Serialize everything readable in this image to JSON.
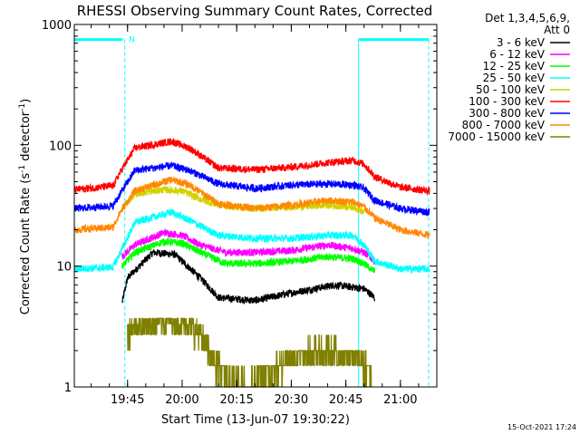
{
  "chart_data": {
    "type": "line",
    "title": "RHESSI Observing Summary Count Rates, Corrected",
    "ylabel_main": "Corrected Count Rate (s",
    "ylabel_sup1": "-1",
    "ylabel_mid": " detector",
    "ylabel_sup2": "-1",
    "ylabel_end": ")",
    "xlabel": "Start Time (13-Jun-07 19:30:22)",
    "footer_date": "15-Oct-2021 17:24",
    "y_scale": "log",
    "ylim": [
      1,
      1000
    ],
    "xlim": [
      "19:30:22",
      "21:10:00"
    ],
    "y_ticks": [
      {
        "value": 1,
        "label": "1"
      },
      {
        "value": 10,
        "label": "10"
      },
      {
        "value": 100,
        "label": "100"
      },
      {
        "value": 1000,
        "label": "1000"
      }
    ],
    "x_ticks": [
      {
        "value": "19:45",
        "label": "19:45"
      },
      {
        "value": "20:00",
        "label": "20:00"
      },
      {
        "value": "20:15",
        "label": "20:15"
      },
      {
        "value": "20:30",
        "label": "20:30"
      },
      {
        "value": "20:45",
        "label": "20:45"
      },
      {
        "value": "21:00",
        "label": "21:00"
      }
    ],
    "legend_header": [
      "Det 1,3,4,5,6,9,",
      "Att 0"
    ],
    "legend_position": "right",
    "series": [
      {
        "name": "3 - 6 keV",
        "color": "#000000",
        "points": [
          [
            "19:43:30",
            5
          ],
          [
            "19:45:00",
            8
          ],
          [
            "19:52:00",
            13
          ],
          [
            "19:58:00",
            12.5
          ],
          [
            "20:05:00",
            8
          ],
          [
            "20:10:00",
            5.5
          ],
          [
            "20:20:00",
            5.2
          ],
          [
            "20:30:00",
            6
          ],
          [
            "20:42:00",
            7
          ],
          [
            "20:50:00",
            6.5
          ],
          [
            "20:53:00",
            5.5
          ]
        ]
      },
      {
        "name": "6 - 12 keV",
        "color": "#ff00ff",
        "points": [
          [
            "19:43:30",
            12
          ],
          [
            "19:47:00",
            15
          ],
          [
            "19:55:00",
            19
          ],
          [
            "20:00:00",
            18
          ],
          [
            "20:05:00",
            15
          ],
          [
            "20:12:00",
            13
          ],
          [
            "20:20:00",
            13
          ],
          [
            "20:30:00",
            13.5
          ],
          [
            "20:40:00",
            15
          ],
          [
            "20:47:00",
            14
          ],
          [
            "20:50:00",
            13
          ],
          [
            "20:53:00",
            11
          ]
        ]
      },
      {
        "name": "12 - 25 keV",
        "color": "#00ff00",
        "points": [
          [
            "19:43:30",
            10
          ],
          [
            "19:47:00",
            13
          ],
          [
            "19:55:00",
            16
          ],
          [
            "20:00:00",
            15.5
          ],
          [
            "20:05:00",
            13
          ],
          [
            "20:12:00",
            10.5
          ],
          [
            "20:20:00",
            10.5
          ],
          [
            "20:30:00",
            11
          ],
          [
            "20:40:00",
            12
          ],
          [
            "20:47:00",
            11.5
          ],
          [
            "20:50:00",
            10.5
          ],
          [
            "20:53:00",
            9
          ]
        ]
      },
      {
        "name": "25 - 50 keV",
        "color": "#00ffff",
        "points": [
          [
            "19:30:22",
            9.5
          ],
          [
            "19:41:00",
            9.8
          ],
          [
            "19:43:00",
            13
          ],
          [
            "19:47:00",
            23
          ],
          [
            "19:57:00",
            28
          ],
          [
            "20:02:00",
            24
          ],
          [
            "20:10:00",
            18
          ],
          [
            "20:20:00",
            17
          ],
          [
            "20:30:00",
            17
          ],
          [
            "20:40:00",
            18
          ],
          [
            "20:47:00",
            18
          ],
          [
            "20:50:00",
            15
          ],
          [
            "20:53:00",
            11
          ],
          [
            "21:00:00",
            9.5
          ],
          [
            "21:08:00",
            9.5
          ]
        ]
      },
      {
        "name": "50 - 100 keV",
        "color": "#d2d200",
        "points": [
          [
            "19:43:30",
            30
          ],
          [
            "19:47:00",
            40
          ],
          [
            "19:55:00",
            43
          ],
          [
            "20:00:00",
            42
          ],
          [
            "20:05:00",
            36
          ],
          [
            "20:10:00",
            32
          ],
          [
            "20:20:00",
            30
          ],
          [
            "20:30:00",
            31
          ],
          [
            "20:40:00",
            32
          ],
          [
            "20:47:00",
            31
          ],
          [
            "20:50:00",
            28
          ]
        ]
      },
      {
        "name": "100 - 300 keV",
        "color": "#ff0000",
        "points": [
          [
            "19:30:22",
            43
          ],
          [
            "19:41:00",
            46
          ],
          [
            "19:43:00",
            60
          ],
          [
            "19:47:00",
            95
          ],
          [
            "19:57:00",
            108
          ],
          [
            "20:02:00",
            95
          ],
          [
            "20:10:00",
            65
          ],
          [
            "20:20:00",
            63
          ],
          [
            "20:30:00",
            66
          ],
          [
            "20:40:00",
            72
          ],
          [
            "20:47:00",
            75
          ],
          [
            "20:50:00",
            70
          ],
          [
            "20:53:00",
            55
          ],
          [
            "21:00:00",
            45
          ],
          [
            "21:08:00",
            42
          ]
        ]
      },
      {
        "name": "300 - 800 keV",
        "color": "#0000ff",
        "points": [
          [
            "19:30:22",
            30
          ],
          [
            "19:41:00",
            31.5
          ],
          [
            "19:43:00",
            40
          ],
          [
            "19:47:00",
            62
          ],
          [
            "19:57:00",
            68
          ],
          [
            "20:02:00",
            62
          ],
          [
            "20:10:00",
            48
          ],
          [
            "20:20:00",
            44
          ],
          [
            "20:30:00",
            47
          ],
          [
            "20:40:00",
            48
          ],
          [
            "20:47:00",
            47
          ],
          [
            "20:50:00",
            44
          ],
          [
            "20:53:00",
            35
          ],
          [
            "21:00:00",
            30
          ],
          [
            "21:08:00",
            28
          ]
        ]
      },
      {
        "name": "800 - 7000 keV",
        "color": "#ff8800",
        "points": [
          [
            "19:30:22",
            20
          ],
          [
            "19:41:00",
            21
          ],
          [
            "19:43:00",
            28
          ],
          [
            "19:47:00",
            42
          ],
          [
            "19:57:00",
            52
          ],
          [
            "20:02:00",
            47
          ],
          [
            "20:10:00",
            33
          ],
          [
            "20:20:00",
            30
          ],
          [
            "20:30:00",
            32
          ],
          [
            "20:40:00",
            35
          ],
          [
            "20:47:00",
            34
          ],
          [
            "20:50:00",
            31
          ],
          [
            "20:53:00",
            25
          ],
          [
            "21:00:00",
            20
          ],
          [
            "21:08:00",
            18
          ]
        ]
      },
      {
        "name": "7000 - 15000 keV",
        "color": "#808000",
        "points": [
          [
            "19:45:00",
            3
          ],
          [
            "19:50:00",
            3.3
          ],
          [
            "19:57:00",
            3.7
          ],
          [
            "20:02:00",
            3.3
          ],
          [
            "20:05:00",
            2.7
          ],
          [
            "20:08:00",
            1.8
          ],
          [
            "20:12:00",
            1.2
          ],
          [
            "20:18:00",
            1.0
          ],
          [
            "20:25:00",
            1.4
          ],
          [
            "20:30:00",
            1.8
          ],
          [
            "20:38:00",
            2.0
          ],
          [
            "20:48:00",
            1.8
          ],
          [
            "20:52:00",
            1.4
          ]
        ]
      }
    ],
    "flag_value": 750,
    "flag_marker": "N"
  }
}
